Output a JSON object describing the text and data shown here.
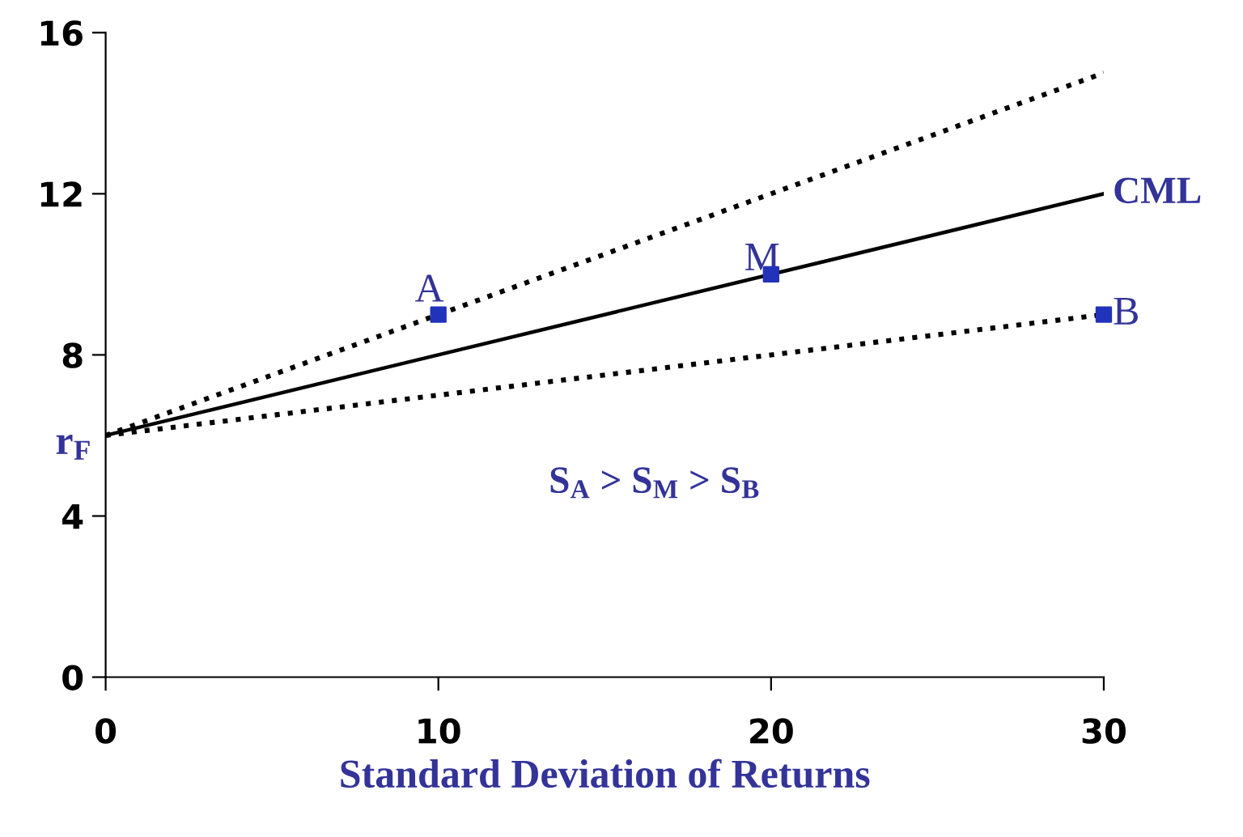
{
  "chart_data": {
    "type": "line",
    "xlabel": "Standard Deviation of Returns",
    "xlim": [
      0,
      30
    ],
    "xticks": [
      0,
      10,
      20,
      30
    ],
    "ylim": [
      0,
      16
    ],
    "yticks": [
      0,
      4,
      8,
      12,
      16
    ],
    "grid": false,
    "legend": false,
    "series": [
      {
        "name": "CML",
        "color": "#000000",
        "line_style": "solid",
        "marker": "none",
        "x": [
          0,
          30
        ],
        "values": [
          6,
          12
        ]
      },
      {
        "color": "#000000",
        "line_style": "dotted",
        "marker": "none",
        "x": [
          0,
          10,
          20,
          30
        ],
        "values": [
          6,
          9,
          12,
          15
        ]
      },
      {
        "color": "#000000",
        "line_style": "dotted",
        "marker": "none",
        "x": [
          0,
          10,
          20,
          30
        ],
        "values": [
          6,
          7,
          8,
          9
        ]
      },
      {
        "type": "scatter",
        "color": "#2233bb",
        "marker": "square",
        "x": [
          10,
          20,
          30
        ],
        "values": [
          9,
          10,
          9
        ]
      }
    ],
    "annotations": [
      {
        "text": "A",
        "x": 10,
        "y": 9
      },
      {
        "text": "M",
        "x": 20,
        "y": 10
      },
      {
        "text": "B",
        "x": 30,
        "y": 9
      },
      {
        "text": "r$_{F}$",
        "x": 0,
        "y": 6
      },
      "S$_{A}$ > S$_{M}$ > S$_{B}$"
    ]
  }
}
